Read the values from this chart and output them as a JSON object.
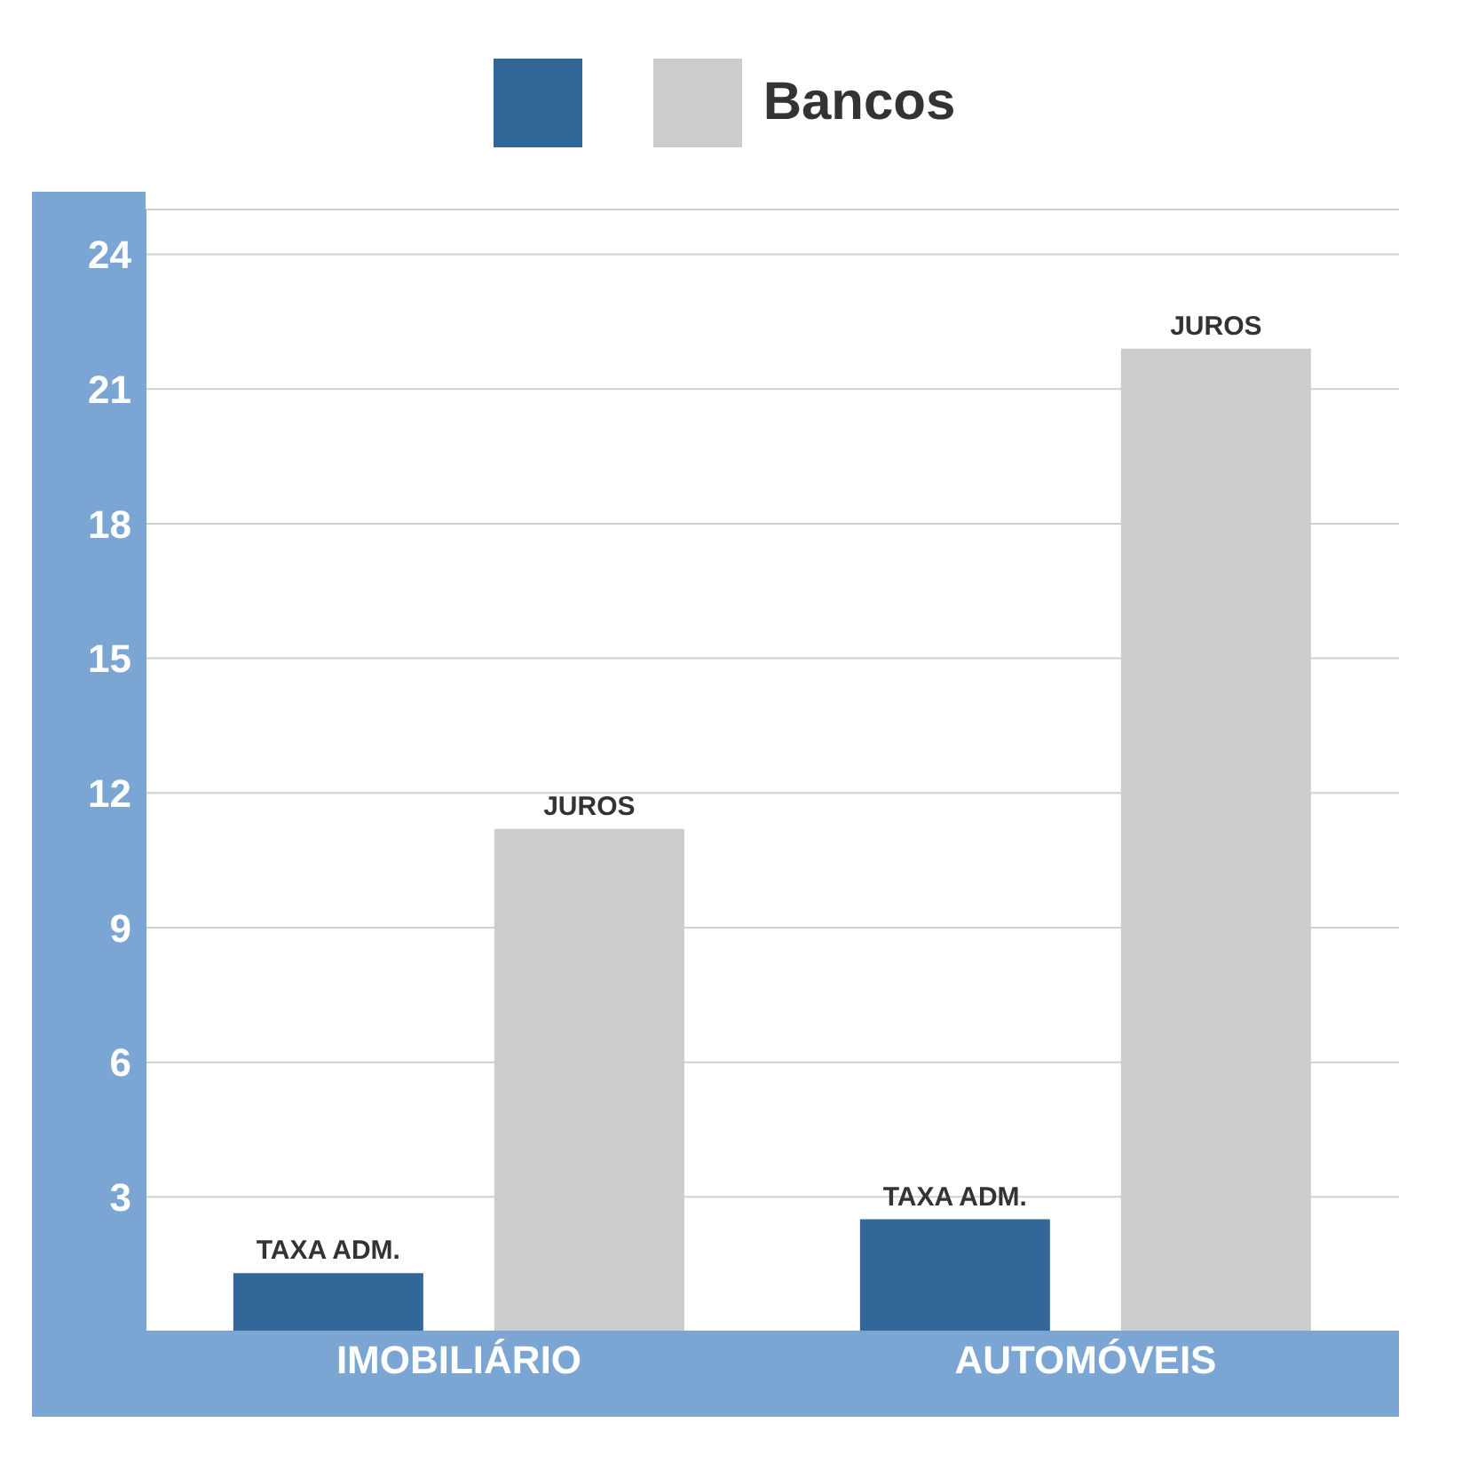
{
  "chart_data": {
    "type": "bar",
    "categories": [
      "IMOBILIÁRIO",
      "AUTOMÓVEIS"
    ],
    "series": [
      {
        "color": "#336699",
        "values": [
          1.3,
          2.5
        ],
        "value_labels": [
          "TAXA ADM.",
          "TAXA ADM."
        ]
      },
      {
        "name": "Bancos",
        "color": "#cccccc",
        "values": [
          11.2,
          21.9
        ],
        "value_labels": [
          "JUROS",
          "JUROS"
        ]
      }
    ],
    "ylim": [
      0,
      25
    ],
    "yticks": [
      {
        "value": 0,
        "label": null
      },
      3,
      6,
      9,
      12,
      15,
      18,
      21,
      24
    ],
    "grid": "y",
    "legend": "top"
  }
}
